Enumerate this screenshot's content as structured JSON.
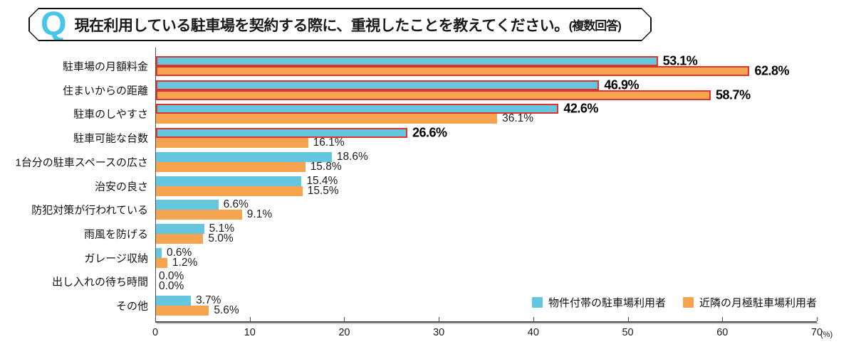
{
  "question": {
    "q_mark": "Q",
    "text": "現在利用している駐車場を契約する際に、重視したことを教えてください。",
    "note": "(複数回答)"
  },
  "colors": {
    "bar_blue": "#65C6E0",
    "bar_orange": "#F5A34F",
    "highlight_border_red": "#E0332D",
    "q_mark_blue": "#48C5E8",
    "axis": "#4f4f4f",
    "axis_shadow": "#c6c6c6"
  },
  "chart_data": {
    "type": "bar",
    "orientation": "horizontal",
    "title": "現在利用している駐車場を契約する際に、重視したことを教えてください。(複数回答)",
    "xlim": [
      0,
      70
    ],
    "x_ticks": [
      0,
      10,
      20,
      30,
      40,
      50,
      60,
      70
    ],
    "x_unit_label": "(%)",
    "grid": false,
    "legend_position": "bottom-right",
    "categories": [
      "駐車場の月額料金",
      "住まいからの距離",
      "駐車のしやすさ",
      "駐車可能な台数",
      "1台分の駐車スペースの広さ",
      "治安の良さ",
      "防犯対策が行われている",
      "雨風を防げる",
      "ガレージ収納",
      "出し入れの待ち時間",
      "その他"
    ],
    "series": [
      {
        "name": "物件付帯の駐車場利用者",
        "color": "#65C6E0",
        "values": [
          53.1,
          46.9,
          42.6,
          26.6,
          18.6,
          15.4,
          6.6,
          5.1,
          0.6,
          0.0,
          3.7
        ],
        "emphasized": [
          true,
          true,
          true,
          true,
          false,
          false,
          false,
          false,
          false,
          false,
          false
        ]
      },
      {
        "name": "近隣の月極駐車場利用者",
        "color": "#F5A34F",
        "values": [
          62.8,
          58.7,
          36.1,
          16.1,
          15.8,
          15.5,
          9.1,
          5.0,
          1.2,
          0.0,
          5.6
        ],
        "emphasized": [
          true,
          true,
          false,
          false,
          false,
          false,
          false,
          false,
          false,
          false,
          false
        ]
      }
    ]
  }
}
